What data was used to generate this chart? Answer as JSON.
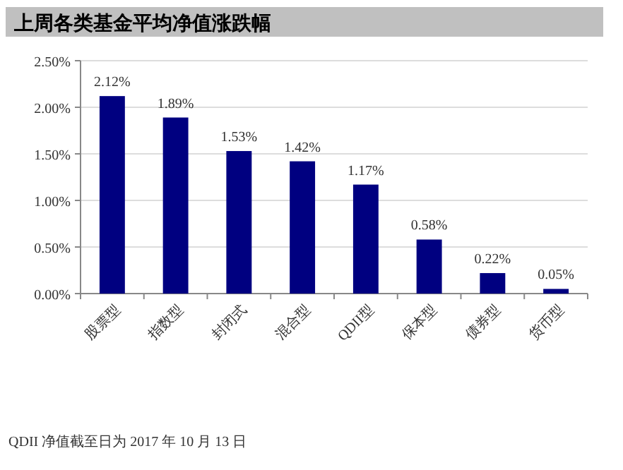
{
  "chart_data": {
    "type": "bar",
    "title": "上周各类基金平均净值涨跌幅",
    "categories": [
      "股票型",
      "指数型",
      "封闭式",
      "混合型",
      "QDII型",
      "保本型",
      "债券型",
      "货币型"
    ],
    "values": [
      2.12,
      1.89,
      1.53,
      1.42,
      1.17,
      0.58,
      0.22,
      0.05
    ],
    "color": "#000080",
    "value_labels": [
      "2.12%",
      "1.89%",
      "1.53%",
      "1.42%",
      "1.17%",
      "0.58%",
      "0.22%",
      "0.05%"
    ],
    "ylim": [
      0,
      2.5
    ],
    "yticks": [
      {
        "value": 0,
        "label": "0.00%"
      },
      {
        "value": 0.5,
        "label": "0.50%"
      },
      {
        "value": 1,
        "label": "1.00%"
      },
      {
        "value": 1.5,
        "label": "1.50%"
      },
      {
        "value": 2,
        "label": "2.00%"
      },
      {
        "value": 2.5,
        "label": "2.50%"
      }
    ],
    "grid": "y",
    "annotations": [
      "QDII 净值截至日为 2017 年 10 月 13 日"
    ]
  }
}
